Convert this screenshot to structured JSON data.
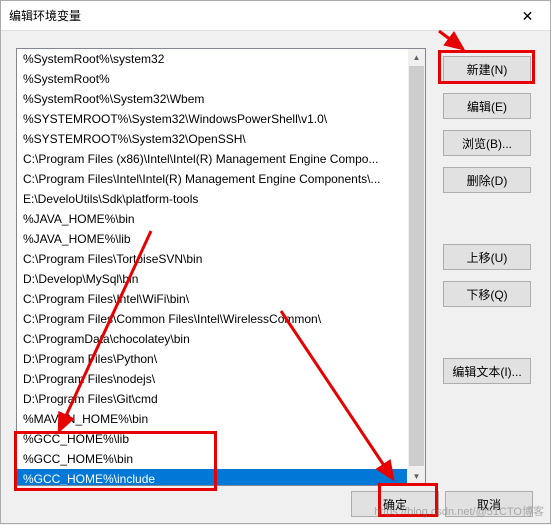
{
  "window": {
    "title": "编辑环境变量",
    "close_glyph": "✕"
  },
  "list": {
    "items": [
      "%SystemRoot%\\system32",
      "%SystemRoot%",
      "%SystemRoot%\\System32\\Wbem",
      "%SYSTEMROOT%\\System32\\WindowsPowerShell\\v1.0\\",
      "%SYSTEMROOT%\\System32\\OpenSSH\\",
      "C:\\Program Files (x86)\\Intel\\Intel(R) Management Engine Compo...",
      "C:\\Program Files\\Intel\\Intel(R) Management Engine Components\\...",
      "E:\\DeveloUtils\\Sdk\\platform-tools",
      "%JAVA_HOME%\\bin",
      "%JAVA_HOME%\\lib",
      "C:\\Program Files\\TortoiseSVN\\bin",
      "D:\\Develop\\MySql\\bin",
      "C:\\Program Files\\Intel\\WiFi\\bin\\",
      "C:\\Program Files\\Common Files\\Intel\\WirelessCommon\\",
      "C:\\ProgramData\\chocolatey\\bin",
      "D:\\Program Files\\Python\\",
      "D:\\Program Files\\nodejs\\",
      "D:\\Program Files\\Git\\cmd",
      "%MAVEN_HOME%\\bin",
      "%GCC_HOME%\\lib",
      "%GCC_HOME%\\bin",
      "%GCC_HOME%\\include"
    ],
    "selected_index": 21
  },
  "buttons": {
    "new": "新建(N)",
    "edit": "编辑(E)",
    "browse": "浏览(B)...",
    "delete": "删除(D)",
    "moveup": "上移(U)",
    "movedown": "下移(Q)",
    "edittext": "编辑文本(I)...",
    "ok": "确定",
    "cancel": "取消"
  },
  "annotations": {
    "highlight_color": "#e60000",
    "arrow_color": "#e60000"
  },
  "watermark": "https://blog.csdn.net/@51CTO博客"
}
